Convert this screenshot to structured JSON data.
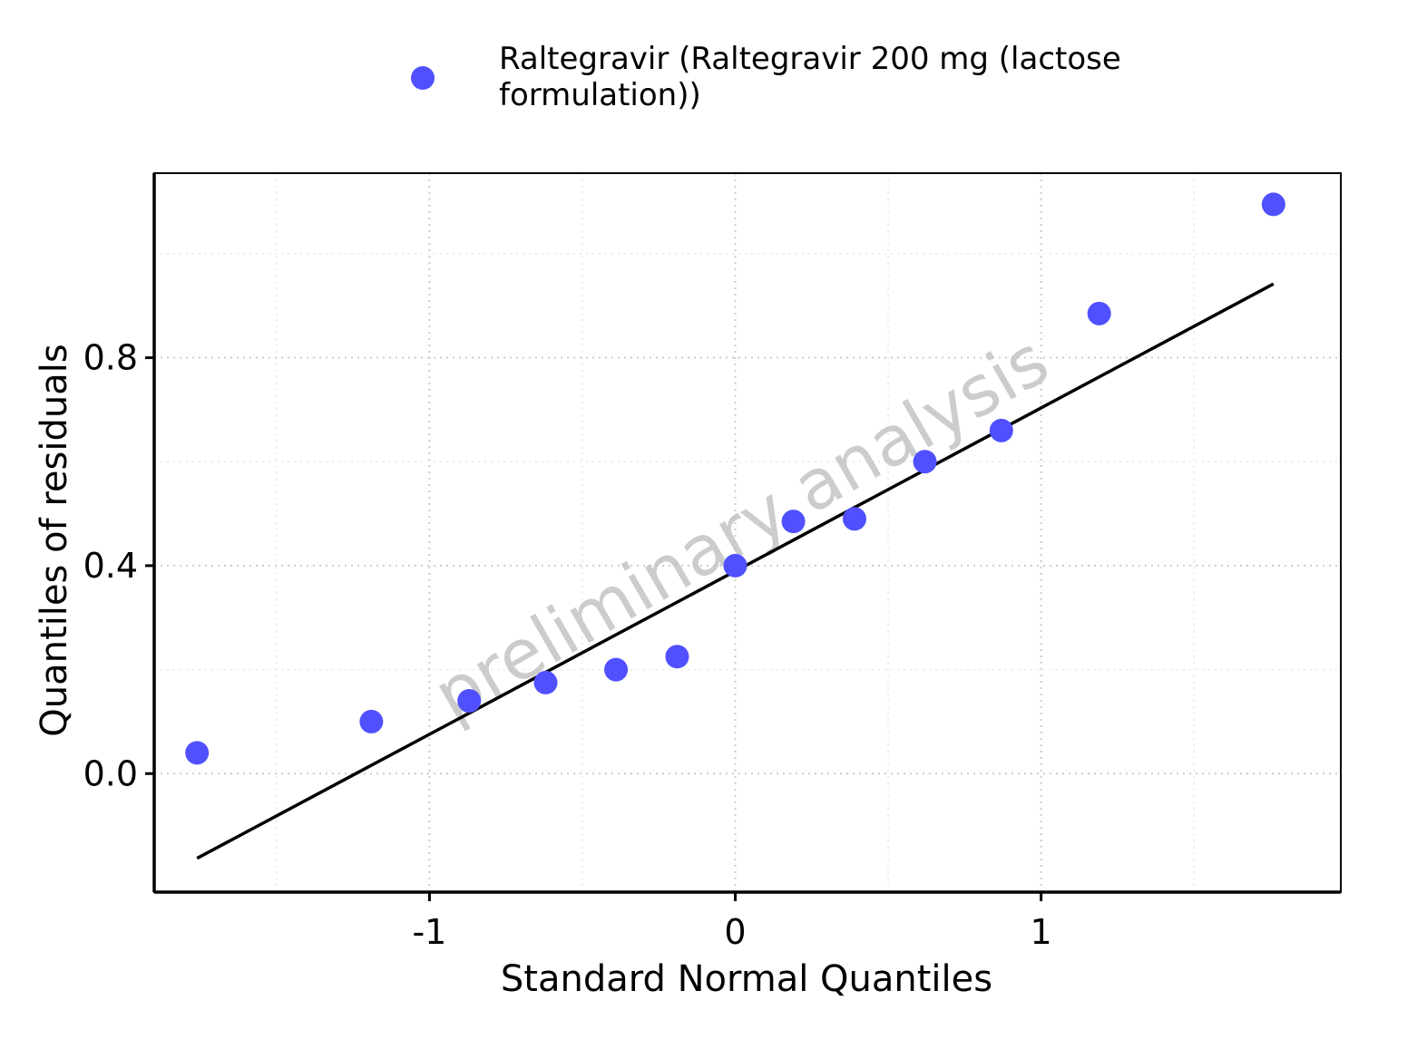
{
  "chart_data": {
    "type": "scatter",
    "xlabel": "Standard Normal Quantiles",
    "ylabel": "Quantiles of residuals",
    "xlim": [
      -1.9,
      1.98
    ],
    "ylim": [
      -0.228,
      1.155
    ],
    "x_ticks": [
      -1,
      0,
      1
    ],
    "x_tick_labels": [
      "-1",
      "0",
      "1"
    ],
    "x_minor_ticks": [
      -1.5,
      -0.5,
      0.5,
      1.5
    ],
    "y_ticks": [
      0.0,
      0.4,
      0.8
    ],
    "y_tick_labels": [
      "0.0",
      "0.4",
      "0.8"
    ],
    "y_minor_ticks": [
      0.2,
      0.6,
      1.0
    ],
    "grid": true,
    "legend_position": "top",
    "watermark": "preliminary analysis",
    "series": [
      {
        "name": "Raltegravir (Raltegravir 200 mg (lactose formulation))",
        "color": "#5050ff",
        "x": [
          -1.76,
          -1.19,
          -0.87,
          -0.62,
          -0.39,
          -0.19,
          0.0,
          0.19,
          0.39,
          0.62,
          0.87,
          1.19,
          1.76
        ],
        "y": [
          0.04,
          0.1,
          0.14,
          0.175,
          0.2,
          0.225,
          0.4,
          0.485,
          0.49,
          0.6,
          0.66,
          0.885,
          1.095
        ]
      }
    ],
    "reference_line": {
      "x": [
        -1.76,
        1.76
      ],
      "y": [
        -0.163,
        0.942
      ],
      "color": "#000000"
    }
  }
}
